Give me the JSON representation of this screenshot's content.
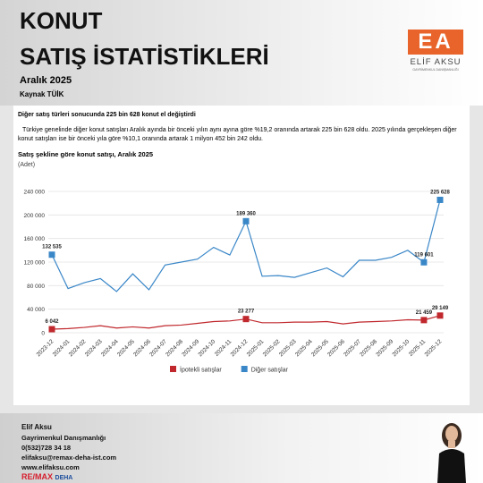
{
  "header": {
    "title_line1": "KONUT",
    "title_line2": "SATIŞ İSTATİSTİKLERİ",
    "date": "Aralık 2025",
    "source": "Kaynak TÜİK"
  },
  "logo": {
    "mark": "EA",
    "name": "ELİF AKSU",
    "tagline": "GAYRİMENKUL DANIŞMANLIĞI"
  },
  "article": {
    "headline": "Diğer satış türleri sonucunda 225 bin 628 konut el değiştirdi",
    "body": "Türkiye genelinde diğer konut satışları Aralık ayında bir önceki yılın aynı ayına göre  %19,2 oranında artarak 225 bin 628 oldu.  2025 yılında gerçekleşen diğer konut satışları ise bir önceki yıla göre %10,1 oranında artarak 1 milyon 452 bin 242 oldu."
  },
  "chart_data": {
    "type": "line",
    "title": "Satış şekline göre konut satışı, Aralık 2025",
    "subtitle": "(Adet)",
    "categories": [
      "2023-12",
      "2024-01",
      "2024-02",
      "2024-03",
      "2024-04",
      "2024-05",
      "2024-06",
      "2024-07",
      "2024-08",
      "2024-09",
      "2024-10",
      "2024-11",
      "2024-12",
      "2025-01",
      "2025-02",
      "2025-03",
      "2025-04",
      "2025-05",
      "2025-06",
      "2025-07",
      "2025-08",
      "2025-09",
      "2025-10",
      "2025-11",
      "2025-12"
    ],
    "series": [
      {
        "name": "İpotekli satışlar",
        "color": "#c0282d",
        "values": [
          6042,
          7000,
          9000,
          12000,
          8000,
          10000,
          8000,
          12000,
          13000,
          16000,
          19000,
          20000,
          23277,
          17000,
          17000,
          18000,
          18000,
          19000,
          15000,
          18000,
          19000,
          20000,
          22000,
          21459,
          29149
        ],
        "value_labels": [
          "6 042",
          null,
          null,
          null,
          null,
          null,
          null,
          null,
          null,
          null,
          null,
          null,
          "23 277",
          null,
          null,
          null,
          null,
          null,
          null,
          null,
          null,
          null,
          null,
          "21 459",
          "29 149"
        ]
      },
      {
        "name": "Diğer satışlar",
        "color": "#3a87c8",
        "values": [
          132535,
          75000,
          85000,
          92000,
          70000,
          100000,
          73000,
          115000,
          120000,
          125000,
          145000,
          132000,
          189360,
          96000,
          97000,
          94000,
          102000,
          110000,
          95000,
          123000,
          123000,
          128000,
          140000,
          119601,
          225628
        ],
        "value_labels": [
          "132 535",
          null,
          null,
          null,
          null,
          null,
          null,
          null,
          null,
          null,
          null,
          null,
          "189 360",
          null,
          null,
          null,
          null,
          null,
          null,
          null,
          null,
          null,
          null,
          "119 601",
          "225 628"
        ]
      }
    ],
    "ylim": [
      0,
      240000
    ],
    "yticks": [
      {
        "value": 0,
        "label": "0"
      },
      {
        "value": 40000,
        "label": "40 000"
      },
      {
        "value": 80000,
        "label": "80 000"
      },
      {
        "value": 120000,
        "label": "120 000"
      },
      {
        "value": 160000,
        "label": "160 000"
      },
      {
        "value": 200000,
        "label": "200 000"
      },
      {
        "value": 240000,
        "label": "240 000"
      }
    ],
    "grid": true,
    "legend": "bottom"
  },
  "footer": {
    "name": "Elif Aksu",
    "role": "Gayrimenkul Danışmanlığı",
    "phone": "0(532)728 34 18",
    "email": "elifaksu@remax-deha-ist.com",
    "web": "www.elifaksu.com",
    "brand": "RE/MAX",
    "office": "DEHA"
  }
}
